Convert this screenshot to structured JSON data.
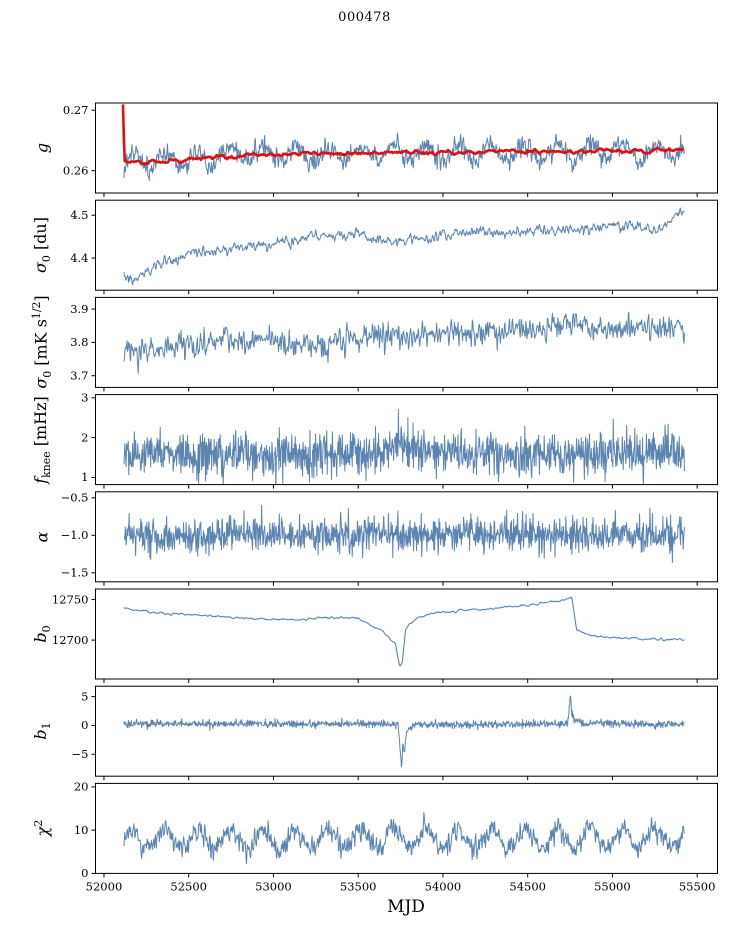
{
  "chart_data": {
    "type": "line",
    "title": "000478",
    "xlabel": "MJD",
    "xlim": [
      51950,
      55620
    ],
    "xticks": [
      52000,
      52500,
      53000,
      53500,
      54000,
      54500,
      55000,
      55500
    ],
    "xtick_labels": [
      "52000",
      "52500",
      "53000",
      "53500",
      "54000",
      "54500",
      "55000",
      "55500"
    ],
    "line_color": "#5b84b1",
    "highlight_color": "#dd1111",
    "axis_color": "#000000",
    "legend": "none",
    "grid": false,
    "panels": [
      {
        "name": "g",
        "label_parts": [
          {
            "t": "g",
            "i": 1
          }
        ],
        "ylim": [
          0.2563,
          0.2712
        ],
        "yticks": [
          0.26,
          0.27
        ],
        "ytick_labels": [
          "0.26",
          "0.27"
        ],
        "series": [
          {
            "color": "#5b84b1",
            "width": 1,
            "samples": 1200,
            "x_start": 52118,
            "x_end": 55425,
            "trend": [
              [
                52118,
                0.2607
              ],
              [
                52200,
                0.2613
              ],
              [
                52400,
                0.2618
              ],
              [
                52700,
                0.2626
              ],
              [
                53000,
                0.2628
              ],
              [
                53500,
                0.263
              ],
              [
                54000,
                0.263
              ],
              [
                54500,
                0.2632
              ],
              [
                55000,
                0.2632
              ],
              [
                55250,
                0.2629
              ],
              [
                55425,
                0.2636
              ]
            ],
            "noise_sd": 0.00085,
            "smooth": 2,
            "osc": {
              "period": 193,
              "amp": 0.0013
            }
          },
          {
            "color": "#dd1111",
            "width": 2.6,
            "samples": 620,
            "x_start": 52112,
            "x_end": 55420,
            "trend": [
              [
                52112,
                0.271
              ],
              [
                52121,
                0.2615
              ],
              [
                52200,
                0.2612
              ],
              [
                52400,
                0.2616
              ],
              [
                52700,
                0.2624
              ],
              [
                53000,
                0.2627
              ],
              [
                53300,
                0.2629
              ],
              [
                53700,
                0.263
              ],
              [
                54100,
                0.263
              ],
              [
                54500,
                0.2632
              ],
              [
                54800,
                0.2631
              ],
              [
                55000,
                0.2633
              ],
              [
                55150,
                0.263
              ],
              [
                55300,
                0.2634
              ],
              [
                55420,
                0.2634
              ]
            ],
            "noise_sd": 0.00018,
            "smooth": 5
          }
        ]
      },
      {
        "name": "sigma0-du",
        "label_parts": [
          {
            "t": "σ",
            "i": 1
          },
          {
            "t": "0",
            "sub": 1
          },
          {
            "t": " [du]"
          }
        ],
        "ylim": [
          4.325,
          4.535
        ],
        "yticks": [
          4.4,
          4.5
        ],
        "ytick_labels": [
          "4.4",
          "4.5"
        ],
        "series": [
          {
            "color": "#5b84b1",
            "width": 1,
            "samples": 1100,
            "x_start": 52118,
            "x_end": 55425,
            "trend": [
              [
                52118,
                4.355
              ],
              [
                52180,
                4.35
              ],
              [
                52300,
                4.38
              ],
              [
                52500,
                4.41
              ],
              [
                52700,
                4.42
              ],
              [
                52900,
                4.43
              ],
              [
                53100,
                4.44
              ],
              [
                53300,
                4.455
              ],
              [
                53500,
                4.455
              ],
              [
                53700,
                4.44
              ],
              [
                53900,
                4.45
              ],
              [
                54100,
                4.46
              ],
              [
                54300,
                4.455
              ],
              [
                54500,
                4.465
              ],
              [
                54700,
                4.465
              ],
              [
                54900,
                4.47
              ],
              [
                55100,
                4.478
              ],
              [
                55250,
                4.462
              ],
              [
                55350,
                4.49
              ],
              [
                55425,
                4.518
              ]
            ],
            "noise_sd": 0.006,
            "smooth": 3
          }
        ]
      },
      {
        "name": "sigma0-mks",
        "label_parts": [
          {
            "t": "σ",
            "i": 1
          },
          {
            "t": "0",
            "sub": 1
          },
          {
            "t": " [mK s"
          },
          {
            "t": "1/2",
            "sup": 1
          },
          {
            "t": "]"
          }
        ],
        "ylim": [
          3.665,
          3.935
        ],
        "yticks": [
          3.7,
          3.8,
          3.9
        ],
        "ytick_labels": [
          "3.7",
          "3.8",
          "3.9"
        ],
        "series": [
          {
            "color": "#5b84b1",
            "width": 1,
            "samples": 1100,
            "x_start": 52118,
            "x_end": 55425,
            "trend": [
              [
                52118,
                3.775
              ],
              [
                52300,
                3.78
              ],
              [
                52600,
                3.8
              ],
              [
                52900,
                3.81
              ],
              [
                53100,
                3.8
              ],
              [
                53250,
                3.775
              ],
              [
                53400,
                3.81
              ],
              [
                53700,
                3.82
              ],
              [
                54000,
                3.825
              ],
              [
                54300,
                3.83
              ],
              [
                54600,
                3.835
              ],
              [
                54750,
                3.865
              ],
              [
                54820,
                3.855
              ],
              [
                54900,
                3.84
              ],
              [
                55100,
                3.84
              ],
              [
                55425,
                3.85
              ]
            ],
            "noise_sd": 0.018,
            "smooth": 2
          }
        ]
      },
      {
        "name": "fknee",
        "label_parts": [
          {
            "t": "f",
            "i": 1
          },
          {
            "t": "knee",
            "sub": 1
          },
          {
            "t": " [mHz]"
          }
        ],
        "ylim": [
          0.82,
          3.08
        ],
        "yticks": [
          1,
          2,
          3
        ],
        "ytick_labels": [
          "1",
          "2",
          "3"
        ],
        "series": [
          {
            "color": "#5b84b1",
            "width": 1,
            "samples": 1300,
            "x_start": 52118,
            "x_end": 55425,
            "trend": [
              [
                52118,
                1.55
              ],
              [
                53600,
                1.6
              ],
              [
                53750,
                1.8
              ],
              [
                53850,
                1.7
              ],
              [
                53950,
                1.6
              ],
              [
                54900,
                1.55
              ],
              [
                55100,
                1.68
              ],
              [
                55425,
                1.62
              ]
            ],
            "noise_sd": 0.27,
            "smooth": 1
          }
        ]
      },
      {
        "name": "alpha",
        "label_parts": [
          {
            "t": "α",
            "i": 1
          }
        ],
        "ylim": [
          -1.62,
          -0.42
        ],
        "yticks": [
          -1.5,
          -1.0,
          -0.5
        ],
        "ytick_labels": [
          "−1.5",
          "−1.0",
          "−0.5"
        ],
        "series": [
          {
            "color": "#5b84b1",
            "width": 1,
            "samples": 1300,
            "x_start": 52118,
            "x_end": 55425,
            "trend": [
              [
                52118,
                -1.0
              ],
              [
                55425,
                -0.99
              ]
            ],
            "noise_sd": 0.115,
            "smooth": 1
          }
        ]
      },
      {
        "name": "b0",
        "label_parts": [
          {
            "t": "b",
            "i": 1
          },
          {
            "t": "0",
            "sub": 1
          }
        ],
        "ylim": [
          12652,
          12763
        ],
        "yticks": [
          12700,
          12750
        ],
        "ytick_labels": [
          "12700",
          "12750"
        ],
        "series": [
          {
            "color": "#5b84b1",
            "width": 1.1,
            "samples": 750,
            "x_start": 52118,
            "x_end": 55425,
            "trend": [
              [
                52118,
                12739
              ],
              [
                52300,
                12734
              ],
              [
                52600,
                12730
              ],
              [
                52900,
                12726
              ],
              [
                53100,
                12725
              ],
              [
                53400,
                12728
              ],
              [
                53500,
                12727
              ],
              [
                53650,
                12710
              ],
              [
                53720,
                12695
              ],
              [
                53745,
                12668
              ],
              [
                53760,
                12672
              ],
              [
                53780,
                12715
              ],
              [
                53850,
                12728
              ],
              [
                53950,
                12733
              ],
              [
                54100,
                12736
              ],
              [
                54300,
                12739
              ],
              [
                54500,
                12743
              ],
              [
                54700,
                12749
              ],
              [
                54760,
                12752
              ],
              [
                54772,
                12735
              ],
              [
                54790,
                12712
              ],
              [
                54850,
                12706
              ],
              [
                55000,
                12703
              ],
              [
                55200,
                12701
              ],
              [
                55425,
                12701
              ]
            ],
            "noise_sd": 0.7,
            "smooth": 4
          }
        ]
      },
      {
        "name": "b1",
        "label_parts": [
          {
            "t": "b",
            "i": 1
          },
          {
            "t": "1",
            "sub": 1
          }
        ],
        "ylim": [
          -8.8,
          6.8
        ],
        "yticks": [
          -5,
          0,
          5
        ],
        "ytick_labels": [
          "−5",
          "0",
          "5"
        ],
        "series": [
          {
            "color": "#5b84b1",
            "width": 1,
            "samples": 1300,
            "x_start": 52118,
            "x_end": 55425,
            "trend": [
              [
                52118,
                0.3
              ],
              [
                53680,
                0.25
              ],
              [
                53735,
                0.2
              ],
              [
                53748,
                -4.5
              ],
              [
                53756,
                -7.6
              ],
              [
                53763,
                -2.5
              ],
              [
                53772,
                -5.2
              ],
              [
                53785,
                -1.2
              ],
              [
                53820,
                0.1
              ],
              [
                54735,
                0.3
              ],
              [
                54752,
                5.2
              ],
              [
                54760,
                2.2
              ],
              [
                54780,
                0.9
              ],
              [
                54830,
                0.4
              ],
              [
                55425,
                0.2
              ]
            ],
            "noise_sd": 0.32,
            "smooth": 1
          }
        ]
      },
      {
        "name": "chi2",
        "label_parts": [
          {
            "t": "χ",
            "i": 1
          },
          {
            "t": "2",
            "sup": 1
          }
        ],
        "ylim": [
          0,
          20.8
        ],
        "yticks": [
          0,
          10,
          20
        ],
        "ytick_labels": [
          "0",
          "10",
          "20"
        ],
        "series": [
          {
            "color": "#5b84b1",
            "width": 1,
            "samples": 1300,
            "x_start": 52118,
            "x_end": 55425,
            "trend": [
              [
                52118,
                7.8
              ],
              [
                55425,
                8.2
              ]
            ],
            "noise_sd": 1.15,
            "smooth": 2,
            "osc": {
              "period": 193,
              "amp": 2.3
            }
          }
        ]
      }
    ]
  }
}
